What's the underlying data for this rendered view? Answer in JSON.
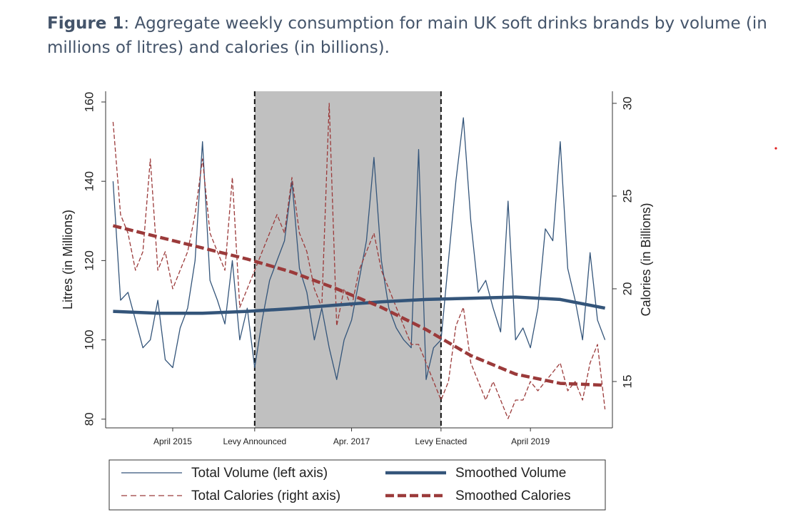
{
  "chart_data": {
    "type": "line",
    "title_label": "Figure 1",
    "title": ": Aggregate weekly consumption for main UK soft drinks brands by volume (in millions of litres) and calories (in billions).",
    "ylabel": "Litres (in Millions)",
    "y2label": "Calories (in Billions)",
    "x": [
      "2014-08",
      "2014-09",
      "2014-10",
      "2014-11",
      "2014-12",
      "2015-01",
      "2015-02",
      "2015-03",
      "2015-04",
      "2015-05",
      "2015-06",
      "2015-07",
      "2015-08",
      "2015-09",
      "2015-10",
      "2015-11",
      "2015-12",
      "2016-01",
      "2016-02",
      "2016-03",
      "2016-04",
      "2016-05",
      "2016-06",
      "2016-07",
      "2016-08",
      "2016-09",
      "2016-10",
      "2016-11",
      "2016-12",
      "2017-01",
      "2017-02",
      "2017-03",
      "2017-04",
      "2017-05",
      "2017-06",
      "2017-07",
      "2017-08",
      "2017-09",
      "2017-10",
      "2017-11",
      "2017-12",
      "2018-01",
      "2018-02",
      "2018-03",
      "2018-04",
      "2018-05",
      "2018-06",
      "2018-07",
      "2018-08",
      "2018-09",
      "2018-10",
      "2018-11",
      "2018-12",
      "2019-01",
      "2019-02",
      "2019-03",
      "2019-04",
      "2019-05",
      "2019-06",
      "2019-07",
      "2019-08",
      "2019-09",
      "2019-10",
      "2019-11",
      "2019-12",
      "2020-01",
      "2020-02"
    ],
    "xlim": [
      "2014-07",
      "2020-03"
    ],
    "xticks": [
      {
        "value": "2015-04",
        "label": "April 2015"
      },
      {
        "value": "2016-03",
        "label": "Levy Announced"
      },
      {
        "value": "2017-04",
        "label": "Apr. 2017"
      },
      {
        "value": "2018-04",
        "label": "Levy Enacted"
      },
      {
        "value": "2019-04",
        "label": "April 2019"
      }
    ],
    "event_lines": [
      "2016-03",
      "2018-04"
    ],
    "shade": {
      "from": "2016-03",
      "to": "2018-04",
      "color": "#c0c0c0"
    },
    "ylim": [
      77.8,
      162.7
    ],
    "yticks": [
      80,
      100,
      120,
      140,
      160
    ],
    "y2lim": [
      12.5,
      30.65
    ],
    "y2ticks": [
      15,
      20,
      25,
      30
    ],
    "series": [
      {
        "name": "Total Volume (left axis)",
        "color": "#34557a",
        "axis": "y",
        "line_width": 1.3,
        "dashed": false,
        "values": [
          140,
          110,
          112,
          105,
          98,
          100,
          110,
          95,
          93,
          103,
          108,
          120,
          150,
          115,
          110,
          104,
          120,
          100,
          108,
          93,
          105,
          115,
          120,
          125,
          140,
          118,
          112,
          100,
          108,
          98,
          90,
          100,
          105,
          115,
          125,
          146,
          120,
          108,
          103,
          100,
          98,
          148,
          90,
          98,
          100,
          120,
          140,
          156,
          130,
          112,
          115,
          108,
          102,
          135,
          100,
          103,
          98,
          108,
          128,
          125,
          150,
          118,
          110,
          100,
          122,
          105,
          100
        ]
      },
      {
        "name": "Total Calories (right axis)",
        "color": "#9b3a3a",
        "axis": "y2",
        "line_width": 1.3,
        "dashed": true,
        "values": [
          29,
          24,
          23,
          21,
          22,
          27,
          21,
          22,
          20,
          21,
          22,
          24,
          27,
          23,
          22,
          21,
          26,
          19,
          20,
          21,
          22,
          23,
          24,
          23,
          26,
          23,
          22,
          20,
          19,
          30,
          18,
          20,
          19,
          21,
          22,
          23,
          21,
          20,
          19,
          18,
          17,
          17,
          16,
          15,
          14,
          15,
          18,
          19,
          16,
          15,
          14,
          15,
          14,
          13,
          14,
          14,
          15,
          14.5,
          15,
          15.5,
          16,
          14.5,
          15,
          14,
          16,
          17,
          13.5
        ]
      },
      {
        "name": "Smoothed Volume",
        "color": "#34557a",
        "axis": "y",
        "line_width": 4.5,
        "dashed": false,
        "x": [
          "2014-08",
          "2015-02",
          "2015-08",
          "2016-02",
          "2016-08",
          "2017-02",
          "2017-08",
          "2018-02",
          "2018-08",
          "2019-02",
          "2019-08",
          "2020-02"
        ],
        "values": [
          107.2,
          106.7,
          106.7,
          107.2,
          107.9,
          108.8,
          109.6,
          110.2,
          110.5,
          110.8,
          110.2,
          108
        ]
      },
      {
        "name": "Smoothed Calories",
        "color": "#9b3a3a",
        "axis": "y2",
        "line_width": 4.5,
        "dashed": true,
        "x": [
          "2014-08",
          "2015-02",
          "2015-08",
          "2016-02",
          "2016-08",
          "2017-02",
          "2017-08",
          "2018-02",
          "2018-08",
          "2019-02",
          "2019-08",
          "2020-02"
        ],
        "values": [
          23.4,
          22.8,
          22.2,
          21.6,
          20.9,
          20.0,
          19.0,
          17.8,
          16.4,
          15.4,
          14.9,
          14.8
        ]
      }
    ],
    "legend": "bottom"
  }
}
